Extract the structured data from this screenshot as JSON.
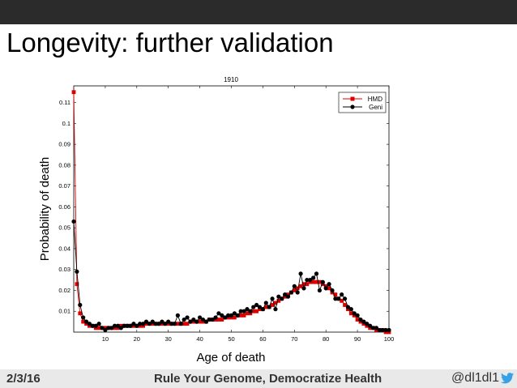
{
  "slide": {
    "title": "Longevity: further validation",
    "footer_date": "2/3/16",
    "footer_center": "Rule Your Genome, Democratize Health",
    "footer_handle": "@dl1dl1",
    "colors": {
      "topbar": "#2b2b2b",
      "footer": "#e9e9e9",
      "twitter": "#3aa0e6"
    }
  },
  "chart_data": {
    "type": "line",
    "title": "1910",
    "xlabel": "Age of death",
    "ylabel": "Probability of death",
    "xlim": [
      0,
      100
    ],
    "ylim": [
      0,
      0.118
    ],
    "xticks": [
      10,
      20,
      30,
      40,
      50,
      60,
      70,
      80,
      90,
      100
    ],
    "yticks": [
      0.01,
      0.02,
      0.03,
      0.04,
      0.05,
      0.06,
      0.07,
      0.08,
      0.09,
      0.1,
      0.11
    ],
    "legend_position": "top-right",
    "grid": false,
    "series": [
      {
        "name": "HMD",
        "color": "#dd0000",
        "marker": "square",
        "x": [
          0,
          1,
          2,
          3,
          4,
          5,
          6,
          7,
          8,
          9,
          10,
          11,
          12,
          13,
          14,
          15,
          16,
          17,
          18,
          19,
          20,
          21,
          22,
          23,
          24,
          25,
          26,
          27,
          28,
          29,
          30,
          31,
          32,
          33,
          34,
          35,
          36,
          37,
          38,
          39,
          40,
          41,
          42,
          43,
          44,
          45,
          46,
          47,
          48,
          49,
          50,
          51,
          52,
          53,
          54,
          55,
          56,
          57,
          58,
          59,
          60,
          61,
          62,
          63,
          64,
          65,
          66,
          67,
          68,
          69,
          70,
          71,
          72,
          73,
          74,
          75,
          76,
          77,
          78,
          79,
          80,
          81,
          82,
          83,
          84,
          85,
          86,
          87,
          88,
          89,
          90,
          91,
          92,
          93,
          94,
          95,
          96,
          97,
          98,
          99,
          100
        ],
        "values": [
          0.115,
          0.023,
          0.009,
          0.005,
          0.004,
          0.003,
          0.003,
          0.002,
          0.002,
          0.002,
          0.002,
          0.002,
          0.002,
          0.002,
          0.002,
          0.003,
          0.003,
          0.003,
          0.003,
          0.003,
          0.003,
          0.003,
          0.003,
          0.004,
          0.004,
          0.004,
          0.004,
          0.004,
          0.004,
          0.004,
          0.004,
          0.004,
          0.004,
          0.004,
          0.004,
          0.004,
          0.004,
          0.005,
          0.005,
          0.005,
          0.005,
          0.005,
          0.005,
          0.006,
          0.006,
          0.006,
          0.006,
          0.006,
          0.007,
          0.007,
          0.007,
          0.007,
          0.008,
          0.008,
          0.008,
          0.009,
          0.009,
          0.01,
          0.01,
          0.011,
          0.011,
          0.012,
          0.012,
          0.013,
          0.014,
          0.015,
          0.016,
          0.017,
          0.018,
          0.019,
          0.02,
          0.021,
          0.022,
          0.023,
          0.023,
          0.024,
          0.024,
          0.024,
          0.024,
          0.023,
          0.022,
          0.021,
          0.019,
          0.018,
          0.016,
          0.015,
          0.013,
          0.011,
          0.009,
          0.008,
          0.006,
          0.005,
          0.004,
          0.003,
          0.002,
          0.002,
          0.001,
          0.001,
          0.001,
          0.0,
          0.0
        ]
      },
      {
        "name": "Geni",
        "color": "#000000",
        "marker": "circle",
        "x": [
          0,
          1,
          2,
          3,
          4,
          5,
          6,
          7,
          8,
          9,
          10,
          11,
          12,
          13,
          14,
          15,
          16,
          17,
          18,
          19,
          20,
          21,
          22,
          23,
          24,
          25,
          26,
          27,
          28,
          29,
          30,
          31,
          32,
          33,
          34,
          35,
          36,
          37,
          38,
          39,
          40,
          41,
          42,
          43,
          44,
          45,
          46,
          47,
          48,
          49,
          50,
          51,
          52,
          53,
          54,
          55,
          56,
          57,
          58,
          59,
          60,
          61,
          62,
          63,
          64,
          65,
          66,
          67,
          68,
          69,
          70,
          71,
          72,
          73,
          74,
          75,
          76,
          77,
          78,
          79,
          80,
          81,
          82,
          83,
          84,
          85,
          86,
          87,
          88,
          89,
          90,
          91,
          92,
          93,
          94,
          95,
          96,
          97,
          98,
          99,
          100
        ],
        "values": [
          0.053,
          0.029,
          0.013,
          0.007,
          0.005,
          0.004,
          0.003,
          0.003,
          0.004,
          0.002,
          0.001,
          0.002,
          0.002,
          0.003,
          0.003,
          0.002,
          0.003,
          0.003,
          0.003,
          0.004,
          0.003,
          0.004,
          0.004,
          0.005,
          0.004,
          0.005,
          0.004,
          0.004,
          0.005,
          0.004,
          0.005,
          0.004,
          0.004,
          0.008,
          0.004,
          0.006,
          0.007,
          0.005,
          0.006,
          0.005,
          0.007,
          0.006,
          0.005,
          0.006,
          0.006,
          0.007,
          0.009,
          0.008,
          0.007,
          0.008,
          0.008,
          0.009,
          0.008,
          0.01,
          0.01,
          0.011,
          0.01,
          0.012,
          0.013,
          0.012,
          0.011,
          0.014,
          0.012,
          0.016,
          0.011,
          0.017,
          0.016,
          0.018,
          0.017,
          0.019,
          0.022,
          0.019,
          0.028,
          0.021,
          0.025,
          0.025,
          0.026,
          0.028,
          0.02,
          0.024,
          0.021,
          0.023,
          0.02,
          0.016,
          0.016,
          0.018,
          0.016,
          0.012,
          0.011,
          0.009,
          0.008,
          0.006,
          0.005,
          0.004,
          0.003,
          0.002,
          0.002,
          0.001,
          0.001,
          0.001,
          0.001
        ]
      }
    ]
  }
}
